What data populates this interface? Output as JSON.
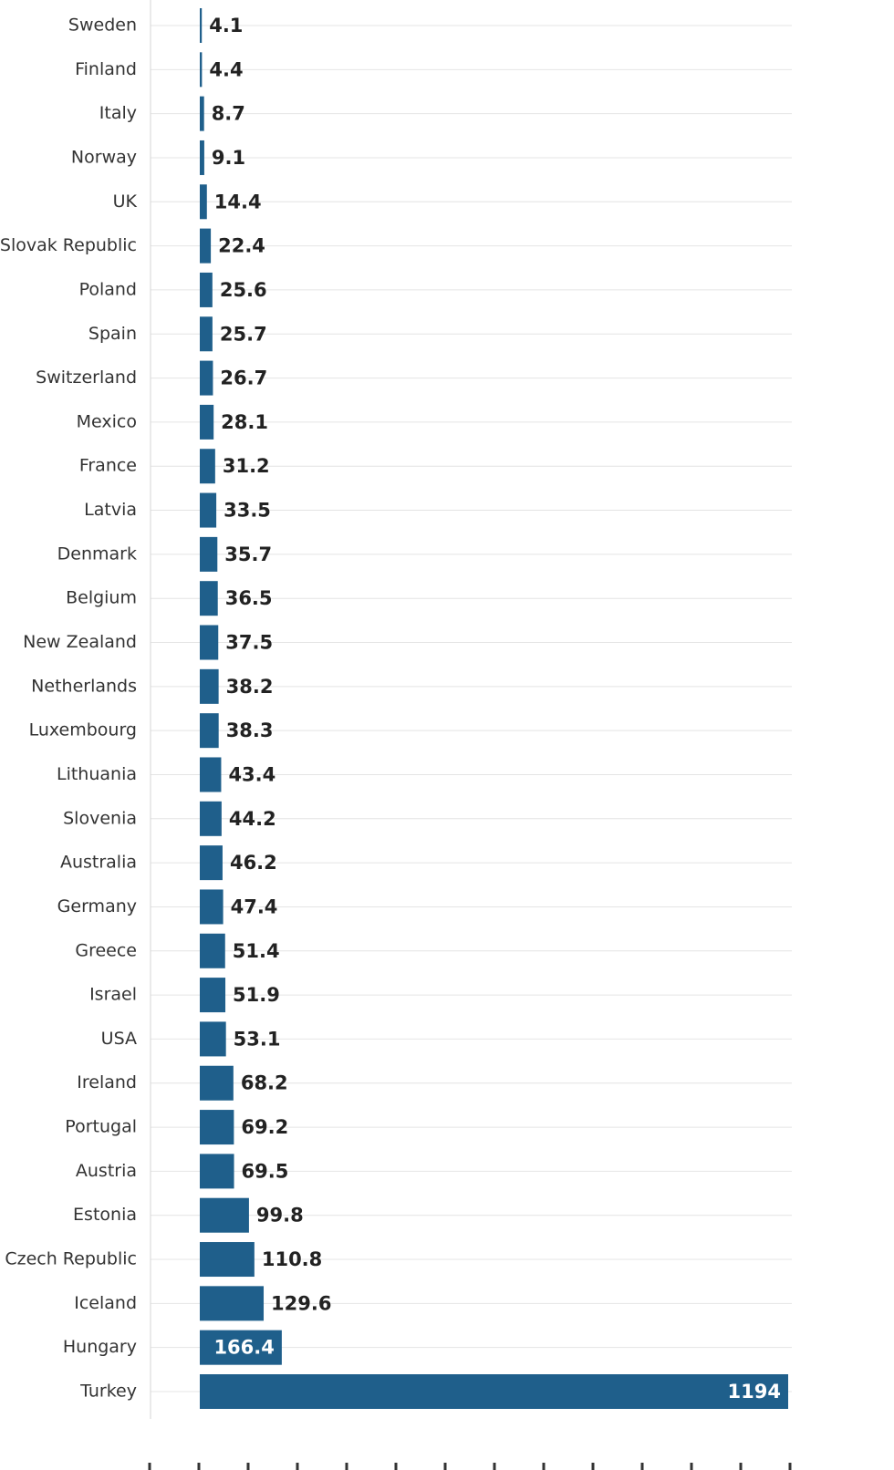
{
  "chart_data": {
    "type": "bar",
    "orientation": "horizontal",
    "title": "",
    "xlabel": "",
    "ylabel": "",
    "bar_color": "#1f5f8b",
    "label_color": "#222222",
    "inside_label_color": "#ffffff",
    "grid": true,
    "xlim": [
      0,
      1194
    ],
    "categories": [
      "Sweden",
      "Finland",
      "Italy",
      "Norway",
      "UK",
      "Slovak Republic",
      "Poland",
      "Spain",
      "Switzerland",
      "Mexico",
      "France",
      "Latvia",
      "Denmark",
      "Belgium",
      "New Zealand",
      "Netherlands",
      "Luxembourg",
      "Lithuania",
      "Slovenia",
      "Australia",
      "Germany",
      "Greece",
      "Israel",
      "USA",
      "Ireland",
      "Portugal",
      "Austria",
      "Estonia",
      "Czech Republic",
      "Iceland",
      "Hungary",
      "Turkey"
    ],
    "values": [
      4.1,
      4.4,
      8.7,
      9.1,
      14.4,
      22.4,
      25.6,
      25.7,
      26.7,
      28.1,
      31.2,
      33.5,
      35.7,
      36.5,
      37.5,
      38.2,
      38.3,
      43.4,
      44.2,
      46.2,
      47.4,
      51.4,
      51.9,
      53.1,
      68.2,
      69.2,
      69.5,
      99.8,
      110.8,
      129.6,
      166.4,
      1194
    ],
    "value_labels": [
      "4.1",
      "4.4",
      "8.7",
      "9.1",
      "14.4",
      "22.4",
      "25.6",
      "25.7",
      "26.7",
      "28.1",
      "31.2",
      "33.5",
      "35.7",
      "36.5",
      "37.5",
      "38.2",
      "38.3",
      "43.4",
      "44.2",
      "46.2",
      "47.4",
      "51.4",
      "51.9",
      "53.1",
      "68.2",
      "69.2",
      "69.5",
      "99.8",
      "110.8",
      "129.6",
      "166.4",
      "1194"
    ]
  }
}
